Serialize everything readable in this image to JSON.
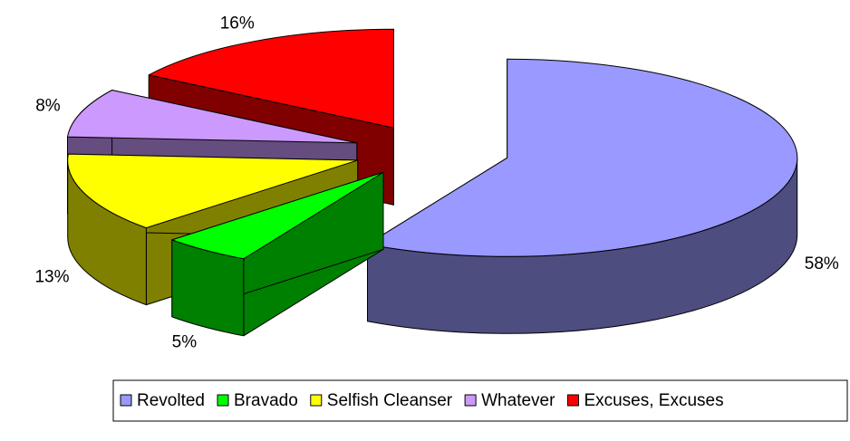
{
  "chart_data": {
    "type": "pie",
    "categories": [
      "Revolted",
      "Bravado",
      "Selfish Cleanser",
      "Whatever",
      "Excuses, Excuses"
    ],
    "values": [
      58,
      5,
      13,
      8,
      16
    ],
    "value_labels": [
      "58%",
      "5%",
      "13%",
      "8%",
      "16%"
    ],
    "colors": [
      "#9999ff",
      "#00ff00",
      "#ffff00",
      "#cc99ff",
      "#ff0000"
    ],
    "side_colors": [
      "#4d4d80",
      "#008000",
      "#808000",
      "#664d80",
      "#800000"
    ],
    "legend": "bottom"
  }
}
